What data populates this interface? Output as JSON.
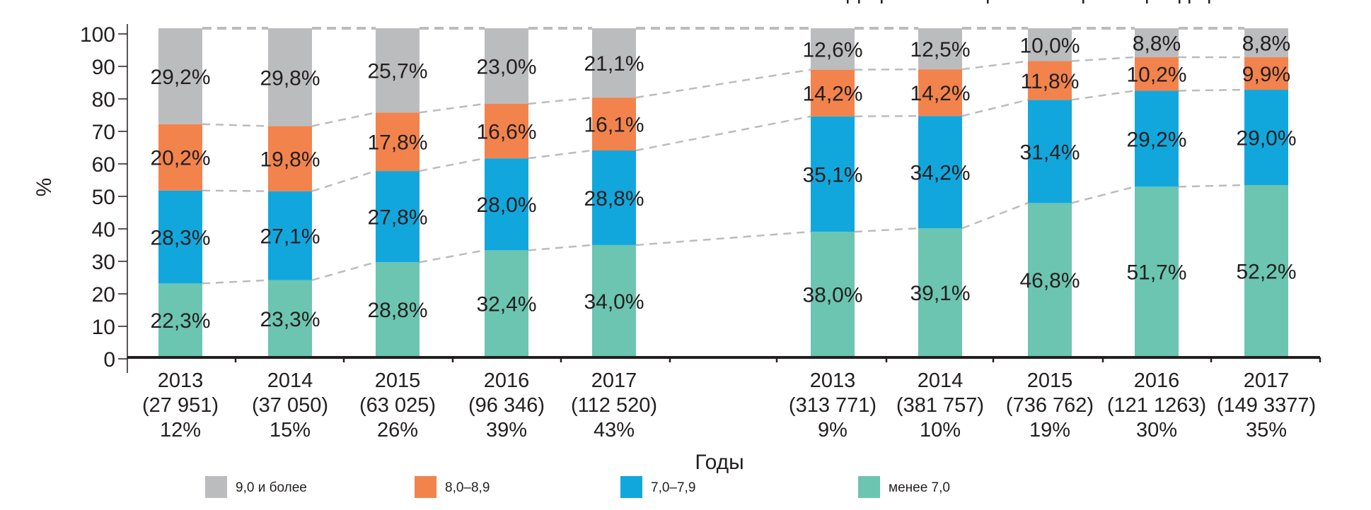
{
  "chart_data": {
    "type": "bar",
    "stacked": true,
    "title": "",
    "xlabel": "Годы",
    "ylabel": "%",
    "ylim": [
      0,
      100
    ],
    "yticks": [
      0,
      10,
      20,
      30,
      40,
      50,
      60,
      70,
      80,
      90,
      100
    ],
    "grid": false,
    "legend_position": "bottom",
    "groups": [
      {
        "categories": [
          {
            "year": "2013",
            "count": "(27 951)",
            "share": "12%"
          },
          {
            "year": "2014",
            "count": "(37 050)",
            "share": "15%"
          },
          {
            "year": "2015",
            "count": "(63 025)",
            "share": "26%"
          },
          {
            "year": "2016",
            "count": "(96 346)",
            "share": "39%"
          },
          {
            "year": "2017",
            "count": "(112 520)",
            "share": "43%"
          }
        ],
        "series": [
          {
            "name": "менее 7,0",
            "color": "#6cc5b0",
            "values": [
              22.3,
              23.3,
              28.8,
              32.4,
              34.0
            ],
            "labels": [
              "22,3%",
              "23,3%",
              "28,8%",
              "32,4%",
              "34,0%"
            ]
          },
          {
            "name": "7,0–7,9",
            "color": "#12a7dc",
            "values": [
              28.3,
              27.1,
              27.8,
              28.0,
              28.8
            ],
            "labels": [
              "28,3%",
              "27,1%",
              "27,8%",
              "28,0%",
              "28,8%"
            ]
          },
          {
            "name": "8,0–8,9",
            "color": "#f2834d",
            "values": [
              20.2,
              19.8,
              17.8,
              16.6,
              16.1
            ],
            "labels": [
              "20,2%",
              "19,8%",
              "17,8%",
              "16,6%",
              "16,1%"
            ]
          },
          {
            "name": "9,0 и более",
            "color": "#bbbcbe",
            "values": [
              29.2,
              29.8,
              25.7,
              23.0,
              21.1
            ],
            "labels": [
              "29,2%",
              "29,8%",
              "25,7%",
              "23,0%",
              "21,1%"
            ]
          }
        ]
      },
      {
        "categories": [
          {
            "year": "2013",
            "count": "(313 771)",
            "share": "9%"
          },
          {
            "year": "2014",
            "count": "(381 757)",
            "share": "10%"
          },
          {
            "year": "2015",
            "count": "(736 762)",
            "share": "19%"
          },
          {
            "year": "2016",
            "count": "(121 1263)",
            "share": "30%"
          },
          {
            "year": "2017",
            "count": "(149 3377)",
            "share": "35%"
          }
        ],
        "series": [
          {
            "name": "менее 7,0",
            "color": "#6cc5b0",
            "values": [
              38.0,
              39.1,
              46.8,
              51.7,
              52.2
            ],
            "labels": [
              "38,0%",
              "39,1%",
              "46,8%",
              "51,7%",
              "52,2%"
            ]
          },
          {
            "name": "7,0–7,9",
            "color": "#12a7dc",
            "values": [
              35.1,
              34.2,
              31.4,
              29.2,
              29.0
            ],
            "labels": [
              "35,1%",
              "34,2%",
              "31,4%",
              "29,2%",
              "29,0%"
            ]
          },
          {
            "name": "8,0–8,9",
            "color": "#f2834d",
            "values": [
              14.2,
              14.2,
              11.8,
              10.2,
              9.9
            ],
            "labels": [
              "14,2%",
              "14,2%",
              "11,8%",
              "10,2%",
              "9,9%"
            ]
          },
          {
            "name": "9,0 и более",
            "color": "#bbbcbe",
            "values": [
              12.6,
              12.5,
              10.0,
              8.8,
              8.8
            ],
            "labels": [
              "12,6%",
              "12,5%",
              "10,0%",
              "8,8%",
              "8,8%"
            ]
          }
        ]
      }
    ],
    "legend": [
      {
        "name": "9,0 и более",
        "color": "#bbbcbe"
      },
      {
        "name": "8,0–8,9",
        "color": "#f2834d"
      },
      {
        "name": "7,0–7,9",
        "color": "#12a7dc"
      },
      {
        "name": "менее 7,0",
        "color": "#6cc5b0"
      }
    ],
    "connector_color": "#bbbcbe",
    "axis_color": "#231f20"
  }
}
